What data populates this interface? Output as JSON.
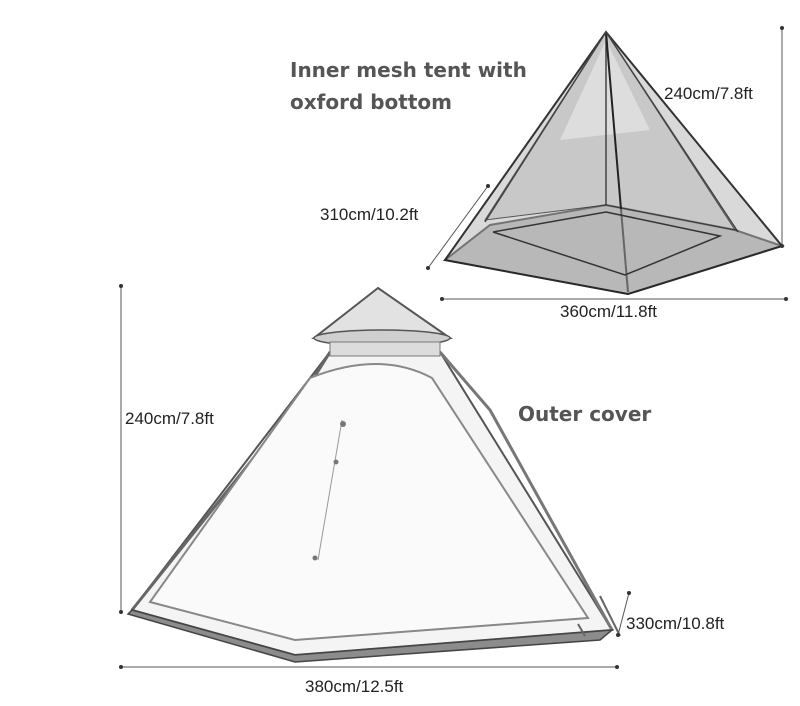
{
  "inner_tent": {
    "title_line1": "Inner mesh tent with",
    "title_line2": "oxford bottom",
    "height": "240cm/7.8ft",
    "depth": "310cm/10.2ft",
    "width": "360cm/11.8ft"
  },
  "outer_cover": {
    "title": "Outer cover",
    "height": "240cm/7.8ft",
    "depth": "330cm/10.8ft",
    "width": "380cm/12.5ft"
  }
}
